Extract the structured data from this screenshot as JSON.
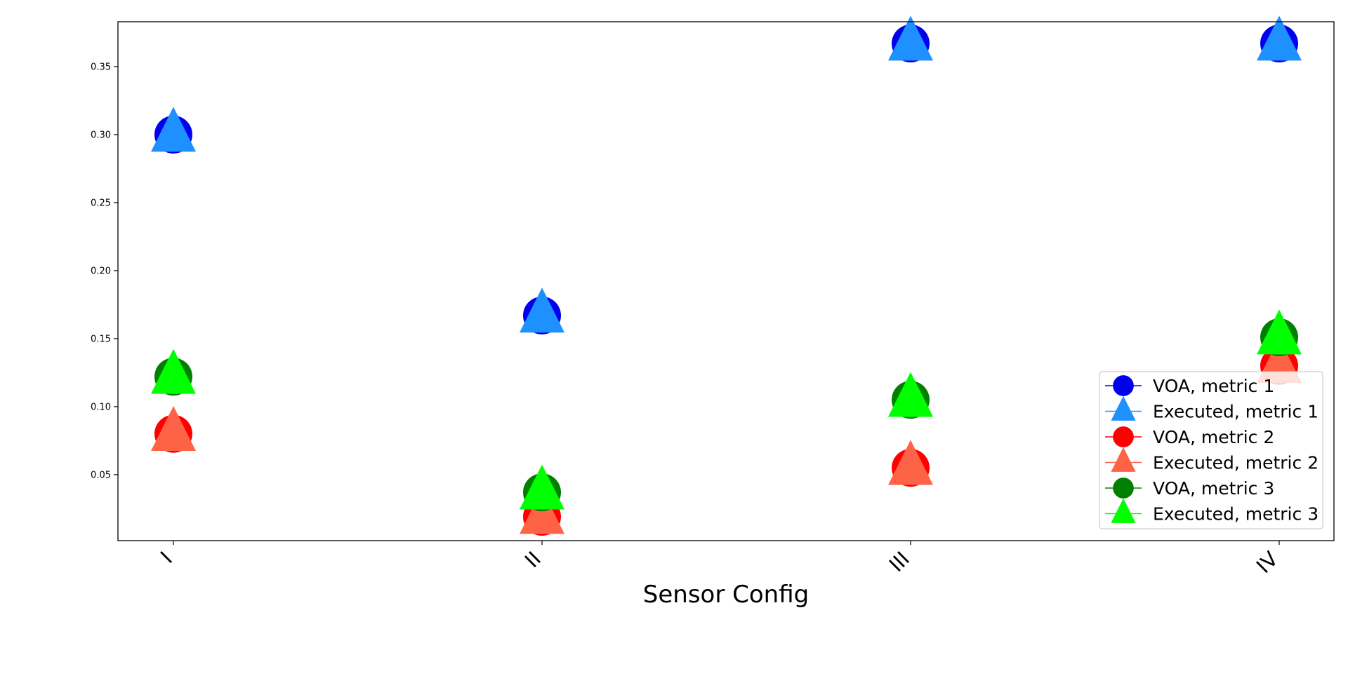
{
  "chart_data": {
    "type": "scatter",
    "xlabel": "Sensor Config",
    "ylabel": "",
    "title": "",
    "categories": [
      "I",
      "II",
      "III",
      "IV"
    ],
    "ylim": [
      0.0015,
      0.383
    ],
    "yticks": [
      0.05,
      0.1,
      0.15,
      0.2,
      0.25,
      0.3,
      0.35
    ],
    "ytick_labels": [
      "0.05",
      "0.10",
      "0.15",
      "0.20",
      "0.25",
      "0.30",
      "0.35"
    ],
    "grid": false,
    "legend_position": "lower-right",
    "series": [
      {
        "name": "VOA, metric 1",
        "marker": "circle",
        "color": "#0000ee",
        "values": [
          0.3,
          0.167,
          0.367,
          0.367
        ]
      },
      {
        "name": "Executed, metric 1",
        "marker": "triangle",
        "color": "#1e90ff",
        "values": [
          0.3,
          0.167,
          0.367,
          0.367
        ]
      },
      {
        "name": "VOA, metric 2",
        "marker": "circle",
        "color": "#ff0000",
        "values": [
          0.08,
          0.019,
          0.055,
          0.13
        ]
      },
      {
        "name": "Executed, metric 2",
        "marker": "triangle",
        "color": "#ff6347",
        "values": [
          0.08,
          0.019,
          0.055,
          0.13
        ]
      },
      {
        "name": "VOA, metric 3",
        "marker": "circle",
        "color": "#008000",
        "values": [
          0.122,
          0.037,
          0.105,
          0.151
        ]
      },
      {
        "name": "Executed, metric 3",
        "marker": "triangle",
        "color": "#00ff00",
        "values": [
          0.122,
          0.037,
          0.105,
          0.151
        ]
      }
    ]
  }
}
